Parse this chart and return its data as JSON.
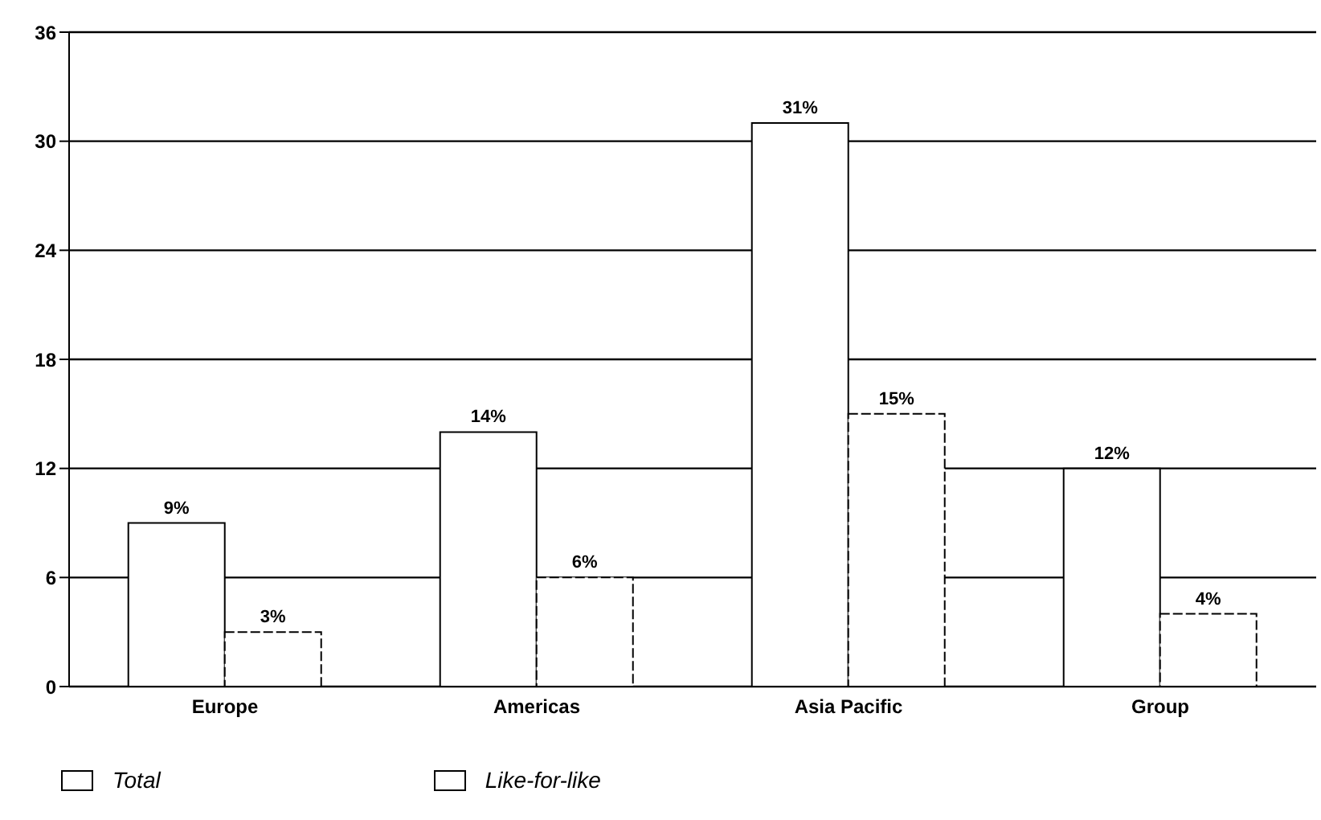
{
  "chart_data": {
    "type": "bar",
    "categories": [
      "Europe",
      "Americas",
      "Asia Pacific",
      "Group"
    ],
    "series": [
      {
        "name": "Total",
        "color": "#ffffff",
        "values": [
          9,
          14,
          31,
          12
        ],
        "value_labels": [
          "9%",
          "14%",
          "31%",
          "12%"
        ]
      },
      {
        "name": "Like-for-like",
        "color": "#ffffff",
        "values": [
          3,
          6,
          15,
          4
        ],
        "value_labels": [
          "3%",
          "6%",
          "15%",
          "4%"
        ]
      }
    ],
    "ylim": [
      0,
      36
    ],
    "yticks": [
      0,
      6,
      12,
      18,
      24,
      30,
      36
    ],
    "grid": "y",
    "legend": "bottom left"
  }
}
